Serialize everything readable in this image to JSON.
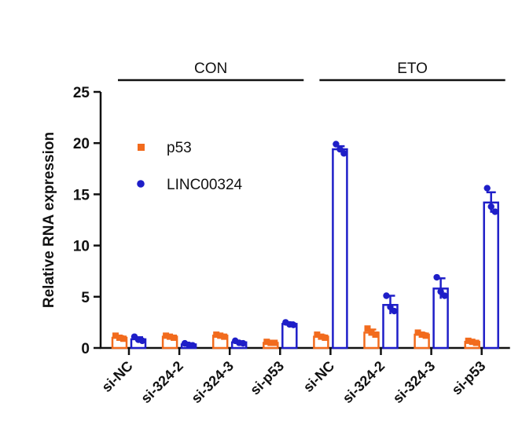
{
  "chart_data": {
    "type": "bar",
    "title": "",
    "xlabel": "",
    "ylabel": "Relative RNA expression",
    "ylim": [
      0,
      25
    ],
    "yticks": [
      0,
      5,
      10,
      15,
      20,
      25
    ],
    "legend_position": "top-left",
    "groups": [
      {
        "label": "CON",
        "categories": [
          "si-NC",
          "si-324-2",
          "si-324-3",
          "si-p53"
        ]
      },
      {
        "label": "ETO",
        "categories": [
          "si-NC",
          "si-324-2",
          "si-324-3",
          "si-p53"
        ]
      }
    ],
    "categories": [
      "si-NC",
      "si-324-2",
      "si-324-3",
      "si-p53",
      "si-NC",
      "si-324-2",
      "si-324-3",
      "si-p53"
    ],
    "series": [
      {
        "name": "p53",
        "color": "#F26B1D",
        "marker": "square",
        "values": [
          1.0,
          1.1,
          1.2,
          0.5,
          1.1,
          1.5,
          1.3,
          0.6
        ],
        "errors": [
          0.15,
          0.1,
          0.1,
          0.05,
          0.15,
          0.3,
          0.15,
          0.1
        ],
        "points": [
          [
            1.2,
            1.0,
            0.9
          ],
          [
            1.2,
            1.1,
            1.0
          ],
          [
            1.3,
            1.2,
            1.1
          ],
          [
            0.6,
            0.5,
            0.5
          ],
          [
            1.3,
            1.1,
            1.0
          ],
          [
            1.9,
            1.5,
            1.3
          ],
          [
            1.5,
            1.3,
            1.2
          ],
          [
            0.7,
            0.6,
            0.5
          ]
        ]
      },
      {
        "name": "LINC00324",
        "color": "#1E1EC8",
        "marker": "circle",
        "values": [
          0.85,
          0.35,
          0.55,
          2.35,
          19.4,
          4.2,
          5.8,
          14.2
        ],
        "errors": [
          0.2,
          0.1,
          0.1,
          0.15,
          0.3,
          0.9,
          1.0,
          1.0
        ],
        "points": [
          [
            1.1,
            0.8,
            0.7
          ],
          [
            0.45,
            0.3,
            0.25
          ],
          [
            0.7,
            0.5,
            0.45
          ],
          [
            2.5,
            2.3,
            2.25
          ],
          [
            19.9,
            19.4,
            19.0
          ],
          [
            5.1,
            4.0,
            3.6
          ],
          [
            6.9,
            5.5,
            5.1
          ],
          [
            15.6,
            13.8,
            13.3
          ]
        ]
      }
    ]
  }
}
